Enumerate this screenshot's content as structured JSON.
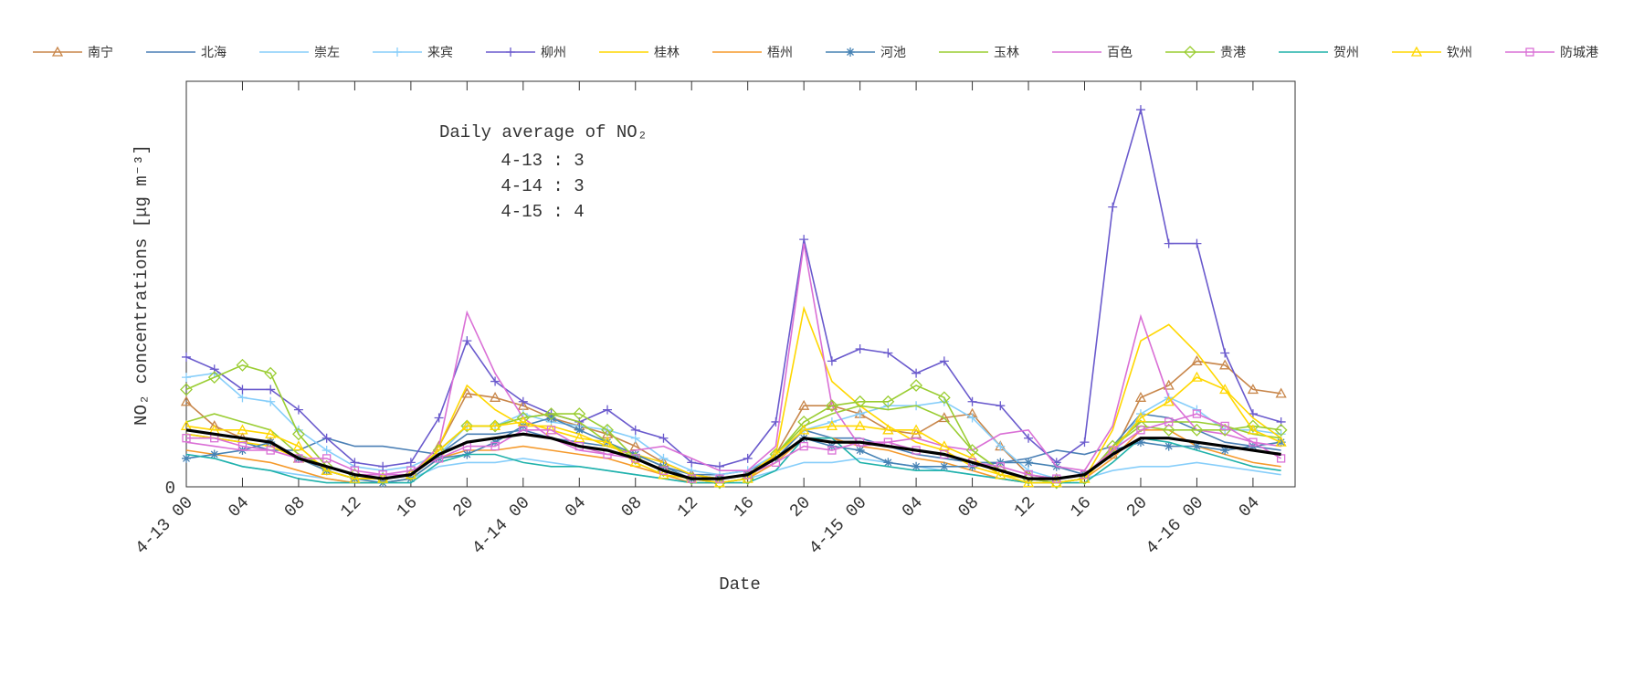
{
  "chart_data": {
    "type": "line",
    "annotation": {
      "title": "Daily average of NO₂",
      "lines": [
        "4-13 : 3",
        "4-14 : 3",
        "4-15 : 4"
      ]
    },
    "x_label": "Date",
    "y_label": "NO₂ concentrations [μg m⁻³]",
    "xlim": [
      0,
      79
    ],
    "ylim": [
      0,
      100
    ],
    "xticks": [
      {
        "value": 0,
        "label": "4-13 00"
      },
      {
        "value": 4,
        "label": "04"
      },
      {
        "value": 8,
        "label": "08"
      },
      {
        "value": 12,
        "label": "12"
      },
      {
        "value": 16,
        "label": "16"
      },
      {
        "value": 20,
        "label": "20"
      },
      {
        "value": 24,
        "label": "4-14 00"
      },
      {
        "value": 28,
        "label": "04"
      },
      {
        "value": 32,
        "label": "08"
      },
      {
        "value": 36,
        "label": "12"
      },
      {
        "value": 40,
        "label": "16"
      },
      {
        "value": 44,
        "label": "20"
      },
      {
        "value": 48,
        "label": "4-15 00"
      },
      {
        "value": 52,
        "label": "04"
      },
      {
        "value": 56,
        "label": "08"
      },
      {
        "value": 60,
        "label": "12"
      },
      {
        "value": 64,
        "label": "16"
      },
      {
        "value": 68,
        "label": "20"
      },
      {
        "value": 72,
        "label": "4-16 00"
      },
      {
        "value": 76,
        "label": "04"
      }
    ],
    "yticks": [
      0
    ],
    "x": [
      0,
      2,
      4,
      6,
      8,
      10,
      12,
      14,
      16,
      18,
      20,
      22,
      24,
      26,
      28,
      30,
      32,
      34,
      36,
      38,
      40,
      42,
      44,
      46,
      48,
      50,
      52,
      54,
      56,
      58,
      60,
      62,
      64,
      66,
      68,
      70,
      72,
      74,
      76,
      78
    ],
    "series": [
      {
        "name": "南宁",
        "color": "#c8864a",
        "marker": "triangle",
        "values": [
          21,
          15,
          12,
          11,
          7,
          4,
          2,
          2,
          3,
          10,
          23,
          22,
          20,
          17,
          15,
          13,
          10,
          6,
          3,
          2,
          3,
          8,
          20,
          20,
          18,
          14,
          13,
          17,
          18,
          10,
          3,
          2,
          3,
          8,
          22,
          25,
          31,
          30,
          24,
          23
        ]
      },
      {
        "name": "北海",
        "color": "#4a7fb5",
        "marker": "none",
        "values": [
          13,
          12,
          11,
          9,
          9,
          12,
          10,
          10,
          9,
          8,
          13,
          13,
          14,
          12,
          11,
          10,
          8,
          5,
          3,
          3,
          4,
          7,
          14,
          12,
          12,
          10,
          8,
          7,
          6,
          6,
          7,
          9,
          8,
          10,
          18,
          17,
          14,
          11,
          10,
          9
        ]
      },
      {
        "name": "崇左",
        "color": "#87cefa",
        "marker": "none",
        "values": [
          8,
          7,
          5,
          4,
          3,
          2,
          1,
          1,
          2,
          5,
          6,
          6,
          7,
          6,
          5,
          4,
          3,
          2,
          1,
          1,
          2,
          4,
          6,
          6,
          7,
          6,
          5,
          4,
          3,
          2,
          1,
          1,
          2,
          4,
          5,
          5,
          6,
          5,
          4,
          3
        ]
      },
      {
        "name": "来宾",
        "color": "#87cefa",
        "marker": "plus",
        "values": [
          27,
          28,
          22,
          21,
          14,
          9,
          5,
          4,
          5,
          8,
          15,
          15,
          18,
          16,
          15,
          14,
          12,
          7,
          4,
          3,
          4,
          8,
          14,
          16,
          18,
          20,
          20,
          21,
          17,
          10,
          4,
          2,
          3,
          8,
          18,
          22,
          19,
          14,
          14,
          13
        ]
      },
      {
        "name": "柳州",
        "color": "#6a5acd",
        "marker": "plus",
        "values": [
          32,
          29,
          24,
          24,
          19,
          12,
          6,
          5,
          6,
          17,
          36,
          26,
          21,
          18,
          16,
          19,
          14,
          12,
          6,
          5,
          7,
          16,
          61,
          31,
          34,
          33,
          28,
          31,
          21,
          20,
          12,
          6,
          11,
          69,
          93,
          60,
          60,
          33,
          18,
          16
        ]
      },
      {
        "name": "桂林",
        "color": "#ffd700",
        "marker": "none",
        "values": [
          13,
          12,
          11,
          10,
          7,
          4,
          2,
          2,
          3,
          10,
          25,
          19,
          15,
          15,
          13,
          10,
          8,
          6,
          3,
          2,
          3,
          8,
          44,
          26,
          20,
          15,
          11,
          9,
          5,
          3,
          2,
          1,
          2,
          14,
          36,
          40,
          33,
          24,
          17,
          12
        ]
      },
      {
        "name": "梧州",
        "color": "#f59a2c",
        "marker": "none",
        "values": [
          9,
          8,
          7,
          6,
          4,
          2,
          1,
          1,
          2,
          7,
          9,
          9,
          10,
          9,
          8,
          7,
          5,
          3,
          1,
          1,
          2,
          6,
          12,
          12,
          10,
          9,
          7,
          6,
          4,
          2,
          1,
          1,
          2,
          7,
          14,
          14,
          10,
          8,
          6,
          5
        ]
      },
      {
        "name": "河池",
        "color": "#4682b4",
        "marker": "star",
        "values": [
          7,
          8,
          9,
          11,
          7,
          4,
          2,
          1,
          2,
          7,
          8,
          11,
          15,
          17,
          14,
          11,
          8,
          5,
          2,
          2,
          3,
          7,
          12,
          10,
          9,
          6,
          5,
          5,
          5,
          6,
          6,
          5,
          3,
          9,
          11,
          10,
          10,
          9,
          10,
          11
        ]
      },
      {
        "name": "玉林",
        "color": "#9acd32",
        "marker": "none",
        "values": [
          16,
          18,
          16,
          14,
          8,
          5,
          3,
          2,
          3,
          9,
          15,
          15,
          17,
          18,
          16,
          11,
          7,
          4,
          2,
          1,
          2,
          8,
          15,
          18,
          20,
          19,
          20,
          17,
          9,
          4,
          2,
          1,
          2,
          10,
          16,
          16,
          16,
          15,
          13,
          12
        ]
      },
      {
        "name": "百色",
        "color": "#da70d6",
        "marker": "none",
        "values": [
          11,
          10,
          9,
          9,
          7,
          5,
          3,
          3,
          3,
          10,
          43,
          28,
          17,
          12,
          9,
          8,
          9,
          10,
          7,
          4,
          4,
          10,
          60,
          20,
          10,
          11,
          12,
          10,
          9,
          13,
          14,
          5,
          4,
          15,
          42,
          22,
          14,
          13,
          11,
          10
        ]
      },
      {
        "name": "贵港",
        "color": "#9acd32",
        "marker": "diamond",
        "values": [
          24,
          27,
          30,
          28,
          13,
          5,
          3,
          2,
          3,
          9,
          15,
          15,
          17,
          18,
          18,
          14,
          7,
          4,
          2,
          1,
          2,
          8,
          16,
          20,
          21,
          21,
          25,
          22,
          9,
          4,
          2,
          1,
          2,
          10,
          15,
          14,
          14,
          14,
          15,
          14
        ]
      },
      {
        "name": "贺州",
        "color": "#20b2aa",
        "marker": "none",
        "values": [
          8,
          7,
          5,
          4,
          2,
          1,
          1,
          1,
          1,
          6,
          8,
          8,
          6,
          5,
          5,
          4,
          3,
          2,
          1,
          1,
          1,
          4,
          12,
          12,
          6,
          5,
          4,
          4,
          3,
          2,
          1,
          1,
          1,
          6,
          12,
          11,
          9,
          7,
          5,
          4
        ]
      },
      {
        "name": "钦州",
        "color": "#ffd700",
        "marker": "triangle",
        "values": [
          15,
          14,
          14,
          13,
          10,
          4,
          2,
          2,
          3,
          9,
          15,
          15,
          16,
          14,
          12,
          11,
          6,
          3,
          2,
          1,
          2,
          8,
          14,
          15,
          15,
          14,
          14,
          10,
          7,
          3,
          1,
          1,
          2,
          9,
          17,
          21,
          27,
          24,
          14,
          11
        ]
      },
      {
        "name": "防城港",
        "color": "#da70d6",
        "marker": "square",
        "values": [
          12,
          12,
          10,
          9,
          7,
          7,
          4,
          3,
          4,
          7,
          10,
          10,
          14,
          14,
          10,
          8,
          7,
          4,
          2,
          2,
          3,
          6,
          10,
          9,
          11,
          11,
          9,
          8,
          6,
          5,
          3,
          2,
          3,
          9,
          14,
          16,
          18,
          15,
          11,
          7
        ]
      },
      {
        "color": "#000000",
        "marker": "none",
        "values": [
          14,
          13,
          12,
          11,
          7,
          5,
          3,
          2,
          3,
          8,
          11,
          12,
          13,
          12,
          10,
          9,
          7,
          4,
          2,
          2,
          3,
          7,
          12,
          11,
          11,
          10,
          9,
          8,
          6,
          4,
          2,
          2,
          3,
          8,
          12,
          12,
          11,
          10,
          9,
          8
        ]
      }
    ]
  }
}
